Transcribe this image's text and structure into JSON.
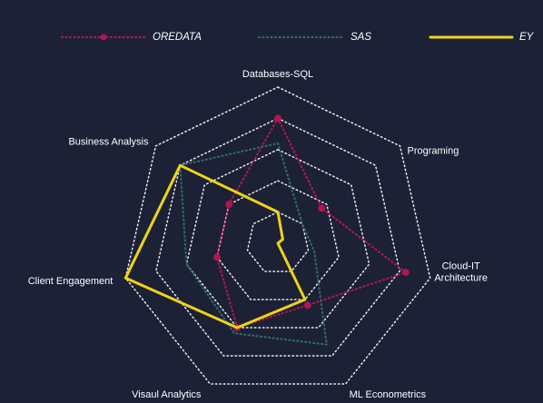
{
  "chart_data": {
    "type": "radar",
    "title": "",
    "axes": [
      [
        "Databases-SQL"
      ],
      [
        "Programing"
      ],
      [
        "Cloud-IT",
        "Architecture"
      ],
      [
        "ML Econometrics"
      ],
      [
        "Visaul Analytics"
      ],
      [
        "Client Engagement"
      ],
      [
        "Business Analysis"
      ]
    ],
    "levels": 5,
    "max": 5,
    "grid": true,
    "legend_position": "top",
    "series": [
      {
        "name": "OREDATA",
        "values": [
          4,
          1.8,
          4.2,
          2.2,
          3,
          2,
          2
        ],
        "color": "#b0164f",
        "style": "dotted-markers"
      },
      {
        "name": "SAS",
        "values": [
          3.2,
          1,
          1.2,
          3.6,
          3.2,
          3,
          4
        ],
        "color": "#2f6a66",
        "style": "dotted"
      },
      {
        "name": "EY",
        "values": [
          1,
          0.2,
          0,
          2,
          3,
          5,
          4
        ],
        "color": "#f0d316",
        "style": "solid"
      }
    ]
  }
}
